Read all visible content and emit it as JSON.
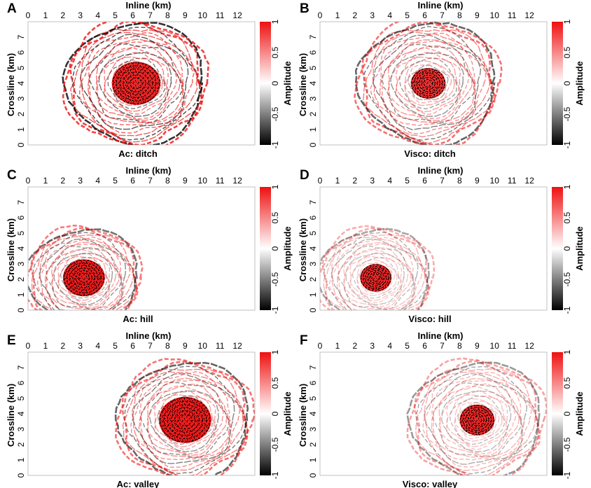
{
  "figure": {
    "colors": {
      "positive": "#ee1111",
      "zero": "#ffffff",
      "negative": "#000000",
      "background": "#ffffff"
    }
  },
  "chart_data": [
    {
      "panel": "A",
      "type": "heatmap",
      "title": "Ac: ditch",
      "xlabel": "Inline (km)",
      "ylabel": "Crossline (km)",
      "xlim": [
        0,
        13
      ],
      "ylim": [
        0,
        8
      ],
      "xticks": [
        0,
        1,
        2,
        3,
        4,
        5,
        6,
        7,
        8,
        9,
        10,
        11,
        12
      ],
      "yticks": [
        0,
        1,
        2,
        3,
        4,
        5,
        6,
        7
      ],
      "colorbar": {
        "label": "Amplitude",
        "range": [
          -1,
          1
        ],
        "ticks": [
          1,
          0.5,
          0,
          -0.5,
          -1
        ]
      },
      "wavefield": {
        "center_km": [
          6.2,
          4.0
        ],
        "radius_km": 4.1,
        "core_radius_km": 1.4,
        "core_amplitude": 0.9,
        "rim_amplitude": 0.8
      }
    },
    {
      "panel": "B",
      "type": "heatmap",
      "title": "Visco: ditch",
      "xlabel": "Inline (km)",
      "ylabel": "Crossline (km)",
      "xlim": [
        0,
        13
      ],
      "ylim": [
        0,
        8
      ],
      "xticks": [
        0,
        1,
        2,
        3,
        4,
        5,
        6,
        7,
        8,
        9,
        10,
        11,
        12
      ],
      "yticks": [
        0,
        1,
        2,
        3,
        4,
        5,
        6,
        7
      ],
      "colorbar": {
        "label": "Amplitude",
        "range": [
          -1,
          1
        ],
        "ticks": [
          1,
          0.5,
          0,
          -0.5,
          -1
        ]
      },
      "wavefield": {
        "center_km": [
          6.2,
          4.0
        ],
        "radius_km": 4.1,
        "core_radius_km": 1.0,
        "core_amplitude": 0.85,
        "rim_amplitude": 0.6
      }
    },
    {
      "panel": "C",
      "type": "heatmap",
      "title": "Ac: hill",
      "xlabel": "Inline (km)",
      "ylabel": "Crossline (km)",
      "xlim": [
        0,
        13
      ],
      "ylim": [
        0,
        8
      ],
      "xticks": [
        0,
        1,
        2,
        3,
        4,
        5,
        6,
        7,
        8,
        9,
        10,
        11,
        12
      ],
      "yticks": [
        0,
        1,
        2,
        3,
        4,
        5,
        6,
        7
      ],
      "colorbar": {
        "label": "Amplitude",
        "range": [
          -1,
          1
        ],
        "ticks": [
          1,
          0.5,
          0,
          -0.5,
          -1
        ]
      },
      "wavefield": {
        "center_km": [
          3.2,
          2.1
        ],
        "radius_km": 3.3,
        "core_radius_km": 1.2,
        "core_amplitude": 0.95,
        "rim_amplitude": 0.55
      }
    },
    {
      "panel": "D",
      "type": "heatmap",
      "title": "Visco: hill",
      "xlabel": "Inline (km)",
      "ylabel": "Crossline (km)",
      "xlim": [
        0,
        13
      ],
      "ylim": [
        0,
        8
      ],
      "xticks": [
        0,
        1,
        2,
        3,
        4,
        5,
        6,
        7,
        8,
        9,
        10,
        11,
        12
      ],
      "yticks": [
        0,
        1,
        2,
        3,
        4,
        5,
        6,
        7
      ],
      "colorbar": {
        "label": "Amplitude",
        "range": [
          -1,
          1
        ],
        "ticks": [
          1,
          0.5,
          0,
          -0.5,
          -1
        ]
      },
      "wavefield": {
        "center_km": [
          3.2,
          2.1
        ],
        "radius_km": 3.3,
        "core_radius_km": 0.9,
        "core_amplitude": 0.9,
        "rim_amplitude": 0.35
      }
    },
    {
      "panel": "E",
      "type": "heatmap",
      "title": "Ac: valley",
      "xlabel": "Inline (km)",
      "ylabel": "Crossline (km)",
      "xlim": [
        0,
        13
      ],
      "ylim": [
        0,
        8
      ],
      "xticks": [
        0,
        1,
        2,
        3,
        4,
        5,
        6,
        7,
        8,
        9,
        10,
        11,
        12
      ],
      "yticks": [
        0,
        1,
        2,
        3,
        4,
        5,
        6,
        7
      ],
      "colorbar": {
        "label": "Amplitude",
        "range": [
          -1,
          1
        ],
        "ticks": [
          1,
          0.5,
          0,
          -0.5,
          -1
        ]
      },
      "wavefield": {
        "center_km": [
          9.0,
          3.6
        ],
        "radius_km": 3.9,
        "core_radius_km": 1.5,
        "core_amplitude": 0.95,
        "rim_amplitude": 0.6
      }
    },
    {
      "panel": "F",
      "type": "heatmap",
      "title": "Visco: valley",
      "xlabel": "Inline (km)",
      "ylabel": "Crossline (km)",
      "xlim": [
        0,
        13
      ],
      "ylim": [
        0,
        8
      ],
      "xticks": [
        0,
        1,
        2,
        3,
        4,
        5,
        6,
        7,
        8,
        9,
        10,
        11,
        12
      ],
      "yticks": [
        0,
        1,
        2,
        3,
        4,
        5,
        6,
        7
      ],
      "colorbar": {
        "label": "Amplitude",
        "range": [
          -1,
          1
        ],
        "ticks": [
          1,
          0.5,
          0,
          -0.5,
          -1
        ]
      },
      "wavefield": {
        "center_km": [
          9.0,
          3.6
        ],
        "radius_km": 3.9,
        "core_radius_km": 1.0,
        "core_amplitude": 0.9,
        "rim_amplitude": 0.4
      }
    }
  ]
}
